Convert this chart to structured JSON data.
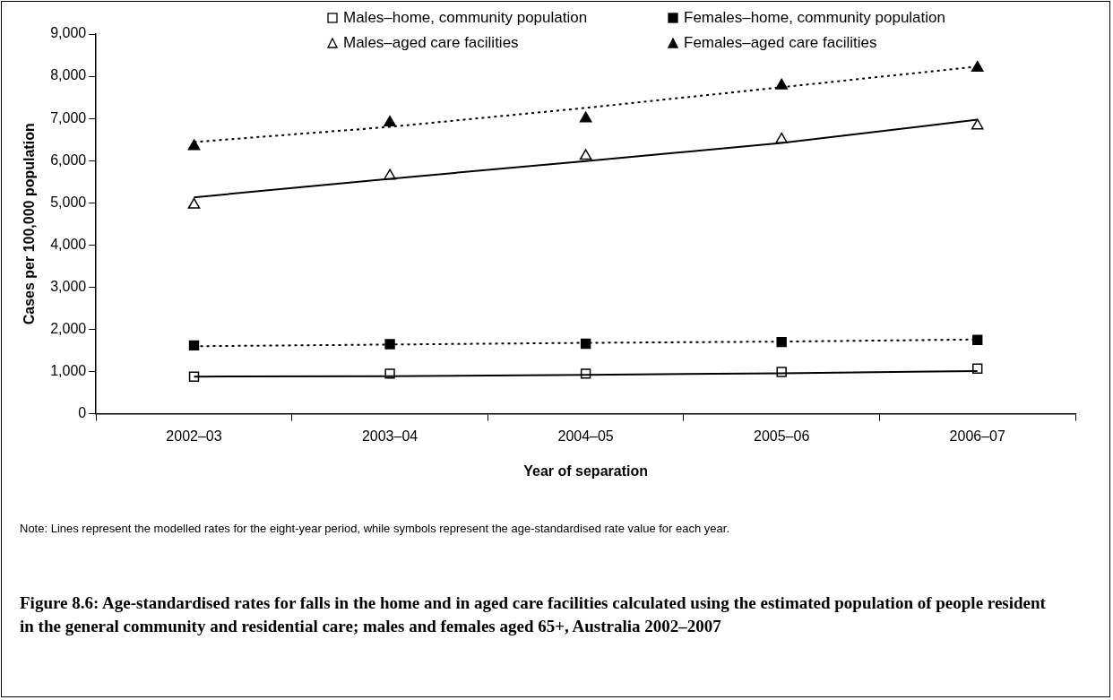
{
  "chart_data": {
    "type": "line",
    "title": "Figure 8.6: Age-standardised rates for falls in the home and in aged care facilities calculated using the estimated population of people resident in the general community and residential care; males and females aged 65+, Australia 2002–2007",
    "xlabel": "Year of separation",
    "ylabel": "Cases per 100,000 population",
    "annotations": [
      "Note: Lines represent the modelled rates for the eight-year period, while symbols represent the age-standardised rate value for each year."
    ],
    "categories": [
      "2002–03",
      "2003–04",
      "2004–05",
      "2005–06",
      "2006–07"
    ],
    "ylim": [
      0,
      9000
    ],
    "yticks": [
      0,
      {
        "value": 1000,
        "label": "1,000"
      },
      {
        "value": 2000,
        "label": "2,000"
      },
      {
        "value": 3000,
        "label": "3,000"
      },
      {
        "value": 4000,
        "label": "4,000"
      },
      {
        "value": 5000,
        "label": "5,000"
      },
      {
        "value": 6000,
        "label": "6,000"
      },
      {
        "value": 7000,
        "label": "7,000"
      },
      {
        "value": 8000,
        "label": "8,000"
      },
      {
        "value": 9000,
        "label": "9,000"
      }
    ],
    "grid": false,
    "legend": "top",
    "series": [
      {
        "color": "#000000",
        "line_style": "solid",
        "marker": "none",
        "values": [
          880,
          890,
          920,
          960,
          1010
        ]
      },
      {
        "color": "#000000",
        "line_style": "dotted",
        "marker": "none",
        "values": [
          1600,
          1640,
          1680,
          1710,
          1760
        ]
      },
      {
        "color": "#000000",
        "line_style": "solid",
        "marker": "none",
        "values": [
          5130,
          5570,
          5990,
          6420,
          6970
        ]
      },
      {
        "color": "#000000",
        "line_style": "dotted",
        "marker": "none",
        "values": [
          6440,
          6800,
          7250,
          7740,
          8230
        ]
      },
      {
        "type": "scatter",
        "name": "Males–home, community population",
        "color": "#ffffff",
        "marker": "square",
        "values": [
          880,
          950,
          950,
          990,
          1070
        ]
      },
      {
        "type": "scatter",
        "name": "Females–home, community population",
        "color": "#000000",
        "marker": "square",
        "values": [
          1620,
          1650,
          1660,
          1700,
          1750
        ]
      },
      {
        "type": "scatter",
        "name": "Males–aged care facilities",
        "color": "#ffffff",
        "marker": "triangle",
        "values": [
          4950,
          5640,
          6110,
          6500,
          6830
        ]
      },
      {
        "type": "scatter",
        "name": "Females–aged care facilities",
        "color": "#000000",
        "marker": "triangle",
        "values": [
          6340,
          6900,
          7000,
          7780,
          8200
        ]
      }
    ]
  }
}
